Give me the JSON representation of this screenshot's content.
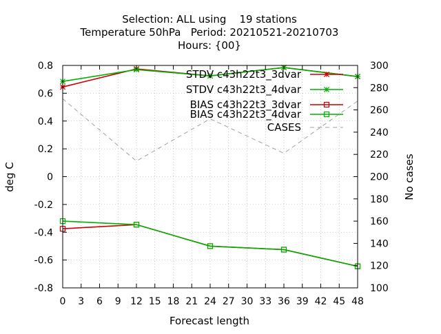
{
  "chart_data": {
    "type": "line",
    "title_lines": [
      "Selection: ALL using    19 stations",
      "Temperature 50hPa   Period: 20210521-20210703",
      "Hours: {00}"
    ],
    "xlabel": "Forecast length",
    "ylabel": "deg C",
    "y2label": "No cases",
    "xlim": [
      0,
      48
    ],
    "ylim": [
      -0.8,
      0.8
    ],
    "y2lim": [
      100,
      300
    ],
    "x_ticks": [
      "0",
      "3",
      "6",
      "9",
      "12",
      "15",
      "18",
      "21",
      "24",
      "27",
      "30",
      "33",
      "36",
      "39",
      "42",
      "45",
      "48"
    ],
    "y_ticks": [
      "-0.8",
      "-0.6",
      "-0.4",
      "-0.2",
      "0",
      "0.2",
      "0.4",
      "0.6",
      "0.8"
    ],
    "y2_ticks": [
      "100",
      "120",
      "140",
      "160",
      "180",
      "200",
      "220",
      "240",
      "260",
      "280",
      "300"
    ],
    "grid": true,
    "legend_position": "top-right",
    "series": [
      {
        "name": "STDV c43h22t3_3dvar",
        "axis": "y",
        "marker": "star",
        "color": "#cc0000",
        "dash": false,
        "x": [
          0,
          12,
          24,
          36,
          48
        ],
        "y": [
          0.645,
          0.775,
          0.725,
          0.785,
          0.72
        ]
      },
      {
        "name": "STDV c43h22t3_4dvar",
        "axis": "y",
        "marker": "star",
        "color": "#00b000",
        "dash": false,
        "x": [
          0,
          12,
          24,
          36,
          48
        ],
        "y": [
          0.685,
          0.77,
          0.725,
          0.785,
          0.72
        ]
      },
      {
        "name": "BIAS c43h22t3_3dvar",
        "axis": "y",
        "marker": "square",
        "color": "#cc0000",
        "dash": false,
        "x": [
          0,
          12,
          24,
          36,
          48
        ],
        "y": [
          -0.375,
          -0.345,
          -0.5,
          -0.525,
          -0.645
        ]
      },
      {
        "name": "BIAS c43h22t3_4dvar",
        "axis": "y",
        "marker": "square",
        "color": "#00b000",
        "dash": false,
        "x": [
          0,
          12,
          24,
          36,
          48
        ],
        "y": [
          -0.32,
          -0.345,
          -0.5,
          -0.525,
          -0.645
        ]
      },
      {
        "name": "CASES",
        "axis": "y2",
        "marker": "none",
        "color": "#a0a0a0",
        "dash": true,
        "x": [
          0,
          12,
          24,
          36,
          48
        ],
        "y": [
          270,
          214,
          252,
          221,
          268
        ]
      }
    ]
  }
}
